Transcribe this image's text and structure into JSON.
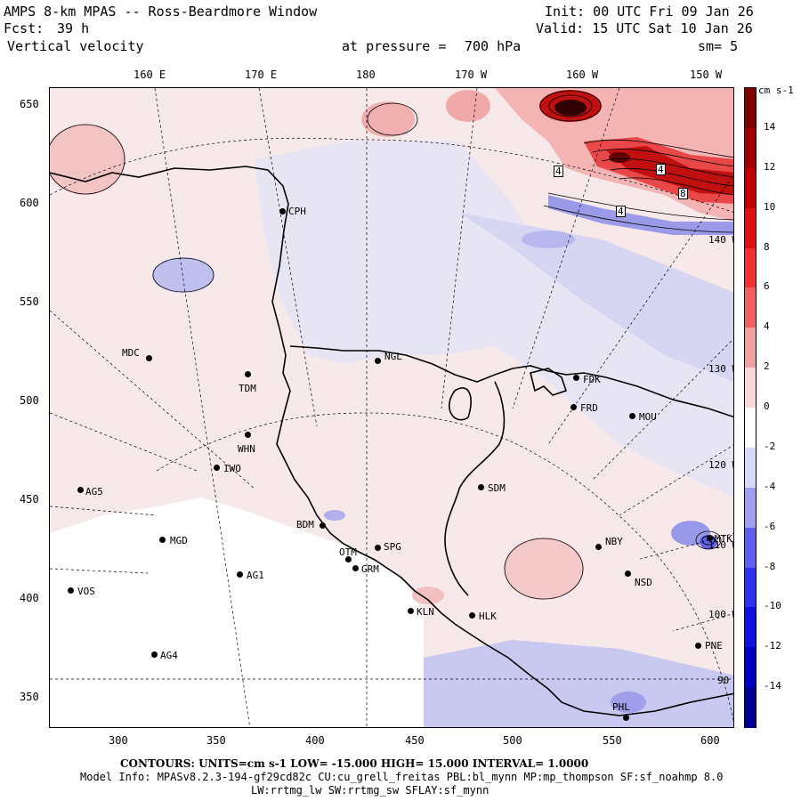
{
  "header": {
    "title": "AMPS 8-km MPAS -- Ross-Beardmore Window",
    "fcst_label": "Fcst:",
    "fcst_value": "39 h",
    "field": "Vertical velocity",
    "init": "Init: 00 UTC Fri 09 Jan 26",
    "valid": "Valid: 15 UTC Sat 10 Jan 26",
    "pressure_label": "at pressure =",
    "pressure_value": "700 hPa",
    "smoothing": "sm= 5"
  },
  "top_axis": [
    "160 E",
    "170 E",
    "180",
    "170 W",
    "160 W",
    "150 W"
  ],
  "left_axis": [
    "650",
    "600",
    "550",
    "500",
    "450",
    "400",
    "350"
  ],
  "bottom_axis": [
    "300",
    "350",
    "400",
    "450",
    "500",
    "550",
    "600"
  ],
  "meridian_labels": [
    "140 W",
    "130 W",
    "120 W",
    "110 W",
    "100 W",
    "90 W"
  ],
  "colorbar": {
    "units": "cm s-1",
    "labels": [
      "14",
      "12",
      "10",
      "8",
      "6",
      "4",
      "2",
      "0",
      "-2",
      "-4",
      "-6",
      "-8",
      "-10",
      "-12",
      "-14"
    ],
    "colors": [
      "#800000",
      "#a00000",
      "#c00000",
      "#e01010",
      "#f03030",
      "#f06060",
      "#f0a0a0",
      "#f8d8d8",
      "#ffffff",
      "#d8d8f8",
      "#a0a0f0",
      "#6060f0",
      "#3030f0",
      "#1010e0",
      "#0000c0",
      "#000090"
    ]
  },
  "contour_labels": [
    "4",
    "4",
    "4",
    "8"
  ],
  "stations": [
    "CPH",
    "NGL",
    "MDC",
    "TDM",
    "FDK",
    "FRD",
    "MOU",
    "WHN",
    "IWO",
    "AG5",
    "SDM",
    "BDM",
    "SPG",
    "OTM",
    "GRM",
    "MGD",
    "NBY",
    "MTK",
    "AG1",
    "NSD",
    "VOS",
    "KLN",
    "HLK",
    "AG4",
    "PNE",
    "PHL"
  ],
  "footer": {
    "contours_line": "CONTOURS: UNITS=cm s-1 LOW= -15.000 HIGH= 15.000 INTERVAL= 1.0000",
    "model_info": "Model Info: MPASv8.2.3-194-gf29cd82c CU:cu_grell_freitas PBL:bl_mynn MP:mp_thompson SF:sf_noahmp 8.0",
    "model_info2": "LW:rrtmg_lw SW:rrtmg_sw SFLAY:sf_mynn"
  }
}
